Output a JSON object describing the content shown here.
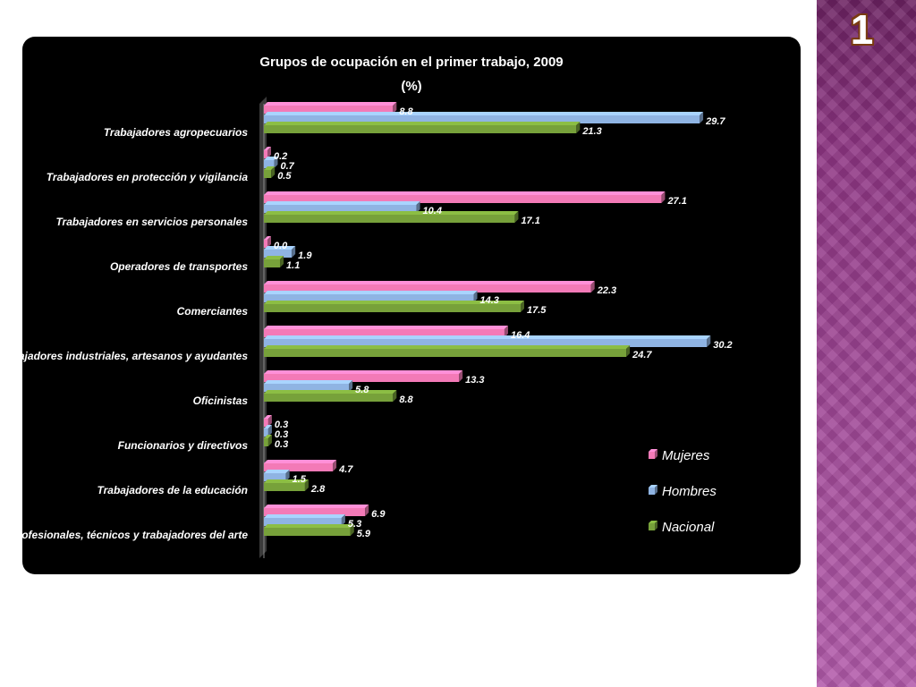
{
  "slide": {
    "number": "1"
  },
  "colors": {
    "panel_background": "#000000",
    "sidebar": "#a2479a",
    "Mujeres": "#f37ab7",
    "Hombres": "#8fb4e3",
    "Nacional": "#77a13a"
  },
  "chart_data": {
    "type": "bar",
    "orientation": "horizontal",
    "title": "Grupos de ocupación  en el primer trabajo, 2009",
    "subtitle": "(%)",
    "categories": [
      "Trabajadores agropecuarios",
      "Trabajadores en protección y vigilancia",
      "Trabajadores en servicios personales",
      "Operadores de transportes",
      "Comerciantes",
      "Trabajadores industriales,  artesanos y ayudantes",
      "Oficinistas",
      "Funcionarios  y directivos",
      "Trabajadores de la educación",
      "Profesionales, técnicos y trabajadores del arte"
    ],
    "series": [
      {
        "name": "Mujeres",
        "values": [
          8.8,
          0.2,
          27.1,
          0.0,
          22.3,
          16.4,
          13.3,
          0.3,
          4.7,
          6.9
        ]
      },
      {
        "name": "Hombres",
        "values": [
          29.7,
          0.7,
          10.4,
          1.9,
          14.3,
          30.2,
          5.8,
          0.3,
          1.5,
          5.3
        ]
      },
      {
        "name": "Nacional",
        "values": [
          21.3,
          0.5,
          17.1,
          1.1,
          17.5,
          24.7,
          8.8,
          0.3,
          2.8,
          5.9
        ]
      }
    ],
    "value_labels": [
      [
        "8.8",
        "0.2",
        "27.1",
        "0.0",
        "22.3",
        "16.4",
        "13.3",
        "0.3",
        "4.7",
        "6.9"
      ],
      [
        "29.7",
        "0.7",
        "10.4",
        "1.9",
        "14.3",
        "30.2",
        "5.8",
        "0.3",
        "1.5",
        "5.3"
      ],
      [
        "21.3",
        "0.5",
        "17.1",
        "1.1",
        "17.5",
        "24.7",
        "8.8",
        "0.3",
        "2.8",
        "5.9"
      ]
    ],
    "xlim": [
      0,
      32
    ],
    "legend_position": "bottom-right",
    "grid": false,
    "bar_style": "3d"
  }
}
